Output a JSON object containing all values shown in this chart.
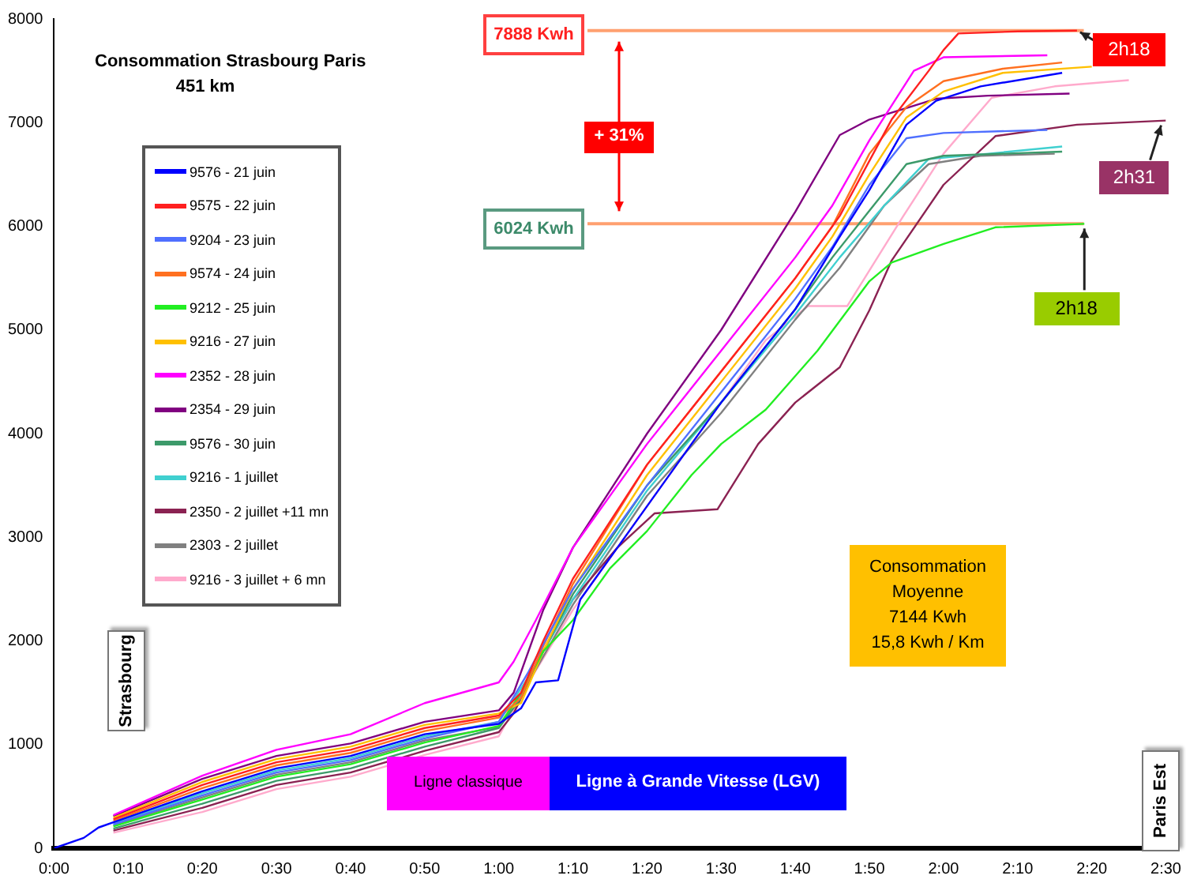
{
  "chart_data": {
    "type": "line",
    "title": "Consommation Strasbourg Paris",
    "subtitle": "451 km",
    "xlim": [
      0,
      150
    ],
    "ylim": [
      0,
      8000
    ],
    "xticks": [
      {
        "value": 0,
        "label": "0:00"
      },
      {
        "value": 10,
        "label": "0:10"
      },
      {
        "value": 20,
        "label": "0:20"
      },
      {
        "value": 30,
        "label": "0:30"
      },
      {
        "value": 40,
        "label": "0:40"
      },
      {
        "value": 50,
        "label": "0:50"
      },
      {
        "value": 60,
        "label": "1:00"
      },
      {
        "value": 70,
        "label": "1:10"
      },
      {
        "value": 80,
        "label": "1:20"
      },
      {
        "value": 90,
        "label": "1:30"
      },
      {
        "value": 100,
        "label": "1:40"
      },
      {
        "value": 110,
        "label": "1:50"
      },
      {
        "value": 120,
        "label": "2:00"
      },
      {
        "value": 130,
        "label": "2:10"
      },
      {
        "value": 140,
        "label": "2:20"
      },
      {
        "value": 150,
        "label": "2:30"
      }
    ],
    "yticks": [
      0,
      1000,
      2000,
      3000,
      4000,
      5000,
      6000,
      7000,
      8000
    ],
    "legend": "top left",
    "marker": "none",
    "line_style": "solid",
    "series": [
      {
        "name": "9576 - 21 juin",
        "color": "#0000ff",
        "x": [
          0,
          4,
          6,
          8,
          20,
          30,
          40,
          50,
          60,
          63,
          65,
          68,
          71,
          80,
          90,
          100,
          106,
          110,
          115,
          119,
          125,
          136
        ],
        "values": [
          0,
          100,
          200,
          250,
          550,
          770,
          890,
          1100,
          1200,
          1350,
          1600,
          1620,
          2400,
          3300,
          4300,
          5200,
          5900,
          6350,
          6980,
          7210,
          7350,
          7480
        ]
      },
      {
        "name": "9575 - 22 juin",
        "color": "#ff2020",
        "x": [
          8,
          20,
          30,
          40,
          50,
          60,
          63,
          66,
          70,
          80,
          90,
          100,
          106,
          113,
          118,
          120,
          122,
          130,
          138
        ],
        "values": [
          280,
          610,
          830,
          950,
          1160,
          1280,
          1500,
          2000,
          2600,
          3700,
          4600,
          5500,
          6100,
          7030,
          7500,
          7700,
          7860,
          7880,
          7888
        ]
      },
      {
        "name": "9204 - 23 juin",
        "color": "#4f6fff",
        "x": [
          8,
          20,
          30,
          40,
          50,
          60,
          64,
          70,
          80,
          90,
          100,
          105,
          110,
          115,
          120,
          134
        ],
        "values": [
          230,
          510,
          730,
          850,
          1060,
          1220,
          1700,
          2500,
          3500,
          4400,
          5300,
          5800,
          6400,
          6850,
          6900,
          6930
        ]
      },
      {
        "name": "9574 - 24 juin",
        "color": "#ff7020",
        "x": [
          8,
          20,
          30,
          40,
          50,
          60,
          63,
          66,
          70,
          80,
          90,
          100,
          105,
          110,
          115,
          120,
          128,
          136
        ],
        "values": [
          265,
          580,
          800,
          920,
          1130,
          1260,
          1450,
          1950,
          2550,
          3700,
          4600,
          5500,
          6000,
          6700,
          7150,
          7400,
          7520,
          7580
        ]
      },
      {
        "name": "9212 - 25 juin",
        "color": "#22ee22",
        "x": [
          8,
          20,
          30,
          40,
          50,
          60,
          63,
          66,
          70,
          75,
          80,
          86,
          90,
          96,
          103,
          110,
          113,
          120,
          127,
          139
        ],
        "values": [
          210,
          470,
          690,
          810,
          1020,
          1180,
          1500,
          1900,
          2200,
          2700,
          3060,
          3600,
          3900,
          4230,
          4800,
          5470,
          5650,
          5830,
          5990,
          6024
        ]
      },
      {
        "name": "9216 - 27 juin",
        "color": "#ffc000",
        "x": [
          8,
          20,
          30,
          40,
          50,
          60,
          63,
          66,
          70,
          80,
          90,
          100,
          105,
          110,
          115,
          120,
          128,
          140
        ],
        "values": [
          295,
          640,
          860,
          980,
          1190,
          1300,
          1400,
          1900,
          2500,
          3600,
          4500,
          5400,
          5900,
          6500,
          7050,
          7300,
          7480,
          7540
        ]
      },
      {
        "name": "2352 - 28 juin",
        "color": "#ff00ff",
        "x": [
          8,
          20,
          30,
          40,
          50,
          60,
          62,
          65,
          70,
          80,
          90,
          100,
          105,
          110,
          116,
          120,
          134
        ],
        "values": [
          320,
          700,
          950,
          1100,
          1400,
          1600,
          1800,
          2200,
          2900,
          3900,
          4800,
          5700,
          6200,
          6830,
          7500,
          7630,
          7650
        ]
      },
      {
        "name": "2354 - 29 juin",
        "color": "#800080",
        "x": [
          8,
          20,
          30,
          40,
          50,
          60,
          62,
          66,
          70,
          80,
          90,
          100,
          106,
          110,
          119,
          126,
          137
        ],
        "values": [
          310,
          670,
          890,
          1010,
          1220,
          1330,
          1500,
          2300,
          2900,
          4000,
          5000,
          6140,
          6880,
          7030,
          7230,
          7260,
          7280
        ]
      },
      {
        "name": "9576 - 30 juin",
        "color": "#3c9a6a",
        "x": [
          8,
          20,
          30,
          40,
          50,
          60,
          63,
          66,
          70,
          80,
          90,
          100,
          105,
          110,
          115,
          120,
          136
        ],
        "values": [
          190,
          430,
          650,
          770,
          980,
          1160,
          1450,
          1900,
          2450,
          3500,
          4300,
          5200,
          5700,
          6150,
          6600,
          6680,
          6720
        ]
      },
      {
        "name": "9216 - 1 juillet",
        "color": "#40d0d0",
        "x": [
          8,
          20,
          30,
          40,
          50,
          60,
          64,
          70,
          80,
          90,
          100,
          106,
          112,
          118,
          126,
          136
        ],
        "values": [
          240,
          530,
          750,
          870,
          1080,
          1220,
          1650,
          2400,
          3450,
          4300,
          5150,
          5700,
          6200,
          6650,
          6700,
          6770
        ]
      },
      {
        "name": "2350 - 2 juillet +11 mn",
        "color": "#8b2252",
        "x": [
          8,
          20,
          30,
          40,
          50,
          60,
          62,
          66,
          70,
          76,
          81,
          89.5,
          95,
          100,
          106,
          110,
          113,
          120,
          127,
          138,
          150
        ],
        "values": [
          170,
          390,
          610,
          730,
          940,
          1120,
          1300,
          1900,
          2400,
          2900,
          3230,
          3270,
          3900,
          4300,
          4640,
          5190,
          5670,
          6400,
          6870,
          6980,
          7020
        ]
      },
      {
        "name": "2303 - 2 juillet",
        "color": "#808080",
        "x": [
          8,
          20,
          30,
          40,
          50,
          60,
          64,
          70,
          80,
          90,
          100,
          106,
          112,
          118,
          125,
          135
        ],
        "values": [
          220,
          490,
          710,
          830,
          1040,
          1170,
          1600,
          2350,
          3400,
          4200,
          5100,
          5600,
          6200,
          6600,
          6680,
          6700
        ]
      },
      {
        "name": "9216 - 3 juillet + 6 mn",
        "color": "#ffaacc",
        "x": [
          8,
          20,
          30,
          40,
          50,
          60,
          64,
          70,
          80,
          90,
          96,
          101.7,
          107,
          114.5,
          120,
          126.5,
          135,
          145
        ],
        "values": [
          150,
          350,
          570,
          690,
          900,
          1080,
          1600,
          2300,
          3300,
          4300,
          4900,
          5230,
          5230,
          6090,
          6700,
          7240,
          7350,
          7410
        ]
      }
    ],
    "ref_lines": [
      {
        "axis": "y",
        "value": 7888,
        "label": "7888 Kwh",
        "color": "#ffa070"
      },
      {
        "axis": "y",
        "value": 6024,
        "label": "6024 Kwh",
        "color": "#ffa070"
      }
    ],
    "annotations": [
      {
        "text": "2h18",
        "x": 138,
        "y": 7888
      },
      {
        "text": "2h31",
        "x": 150,
        "y": 7020
      },
      {
        "text": "2h18",
        "x": 139,
        "y": 6024
      },
      "+ 31%",
      "Consommation\nMoyenne\n7144 Kwh\n15,8 Kwh / Km",
      "Strasbourg",
      "Paris Est",
      "Ligne classique",
      "Ligne à Grande Vitesse (LGV)"
    ]
  }
}
